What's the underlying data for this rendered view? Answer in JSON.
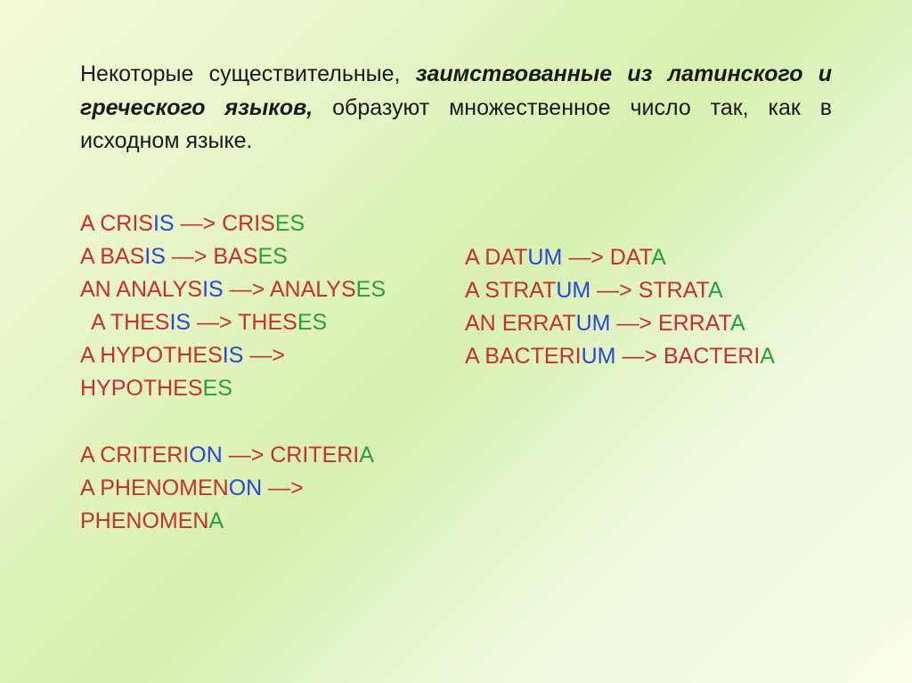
{
  "paragraph": {
    "pre": "Некоторые существительные, ",
    "em": "заимствованные из латинского и греческого языков,",
    "post": " образуют множественное число так, как в исходном языке."
  },
  "colors": {
    "stem": "#c8302a",
    "suffix_singular": "#2848d8",
    "suffix_plural": "#2aa03a",
    "arrow": "#c8302a",
    "text": "#1a1a1a"
  },
  "fontsize_paragraph": 25,
  "fontsize_words": 25,
  "left_col": {
    "crisis": {
      "art": "A ",
      "stem": "CRIS",
      "s_suf": "IS",
      "arrow": " —> ",
      "p_stem": "CRIS",
      "p_suf": "ES"
    },
    "basis": {
      "art": "A ",
      "stem": "BAS",
      "s_suf": "IS",
      "arrow": " —> ",
      "p_stem": "BAS",
      "p_suf": "ES"
    },
    "analysis": {
      "art": "AN ",
      "stem": "ANALYS",
      "s_suf": "IS",
      "arrow": " —> ",
      "p_stem": "ANALYS",
      "p_suf": "ES"
    },
    "thesis": {
      "art": "A ",
      "stem": "THES",
      "s_suf": "IS",
      "arrow": " —> ",
      "p_stem": "THES",
      "p_suf": "ES"
    },
    "hypothesis": {
      "art": "A ",
      "stem": "HYPOTHES",
      "s_suf": "IS",
      "arrow": " —> ",
      "p_stem": "HYPOTHES",
      "p_suf": "ES"
    },
    "criterion": {
      "art": "A ",
      "stem": "CRITERI",
      "s_suf": "ON",
      "arrow": " —> ",
      "p_stem": "CRITERI",
      "p_suf": "A"
    },
    "phenomenon": {
      "art": "A ",
      "stem": "PHENOMEN",
      "s_suf": "ON",
      "arrow": " —> ",
      "p_stem": "PHENOMEN",
      "p_suf": "A"
    }
  },
  "right_col": {
    "datum": {
      "art": "A ",
      "stem": "DAT",
      "s_suf": "UM",
      "arrow": " —> ",
      "p_stem": "DAT",
      "p_suf": "A"
    },
    "stratum": {
      "art": "A ",
      "stem": "STRAT",
      "s_suf": "UM",
      "arrow": " —> ",
      "p_stem": "STRAT",
      "p_suf": "A"
    },
    "erratum": {
      "art": "AN ",
      "stem": "ERRAT",
      "s_suf": "UM",
      "arrow": " —> ",
      "p_stem": "ERRAT",
      "p_suf": "A"
    },
    "bacterium": {
      "art": "A ",
      "stem": "BACTERI",
      "s_suf": "UM",
      "arrow": " —> ",
      "p_stem": "BACTERI",
      "p_suf": "A"
    }
  }
}
